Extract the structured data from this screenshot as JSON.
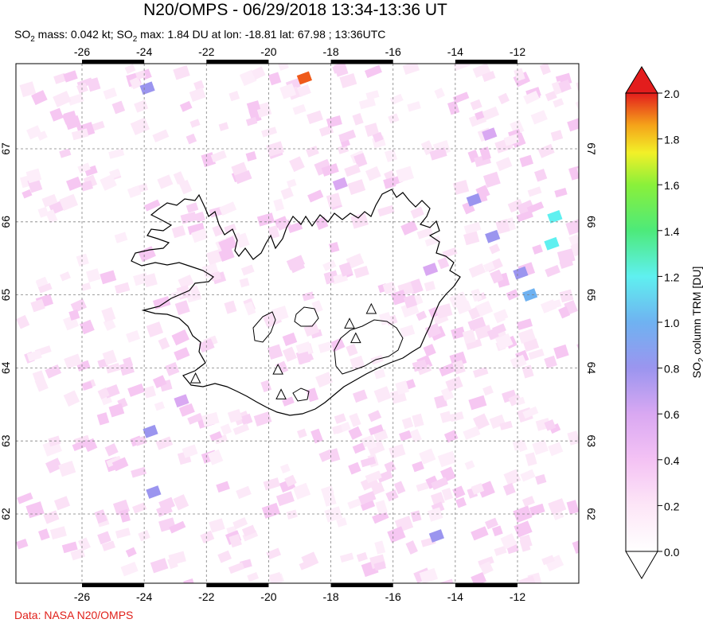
{
  "header": {
    "title": "N20/OMPS - 06/29/2018 13:34-13:36 UT",
    "subtitle_pre": "SO",
    "subtitle_sub": "2",
    "subtitle_mid": " mass: 0.042 kt; SO",
    "subtitle_sub2": "2",
    "subtitle_post": " max: 1.84 DU at lon: -18.81 lat: 67.98 ; 13:36UTC"
  },
  "credit": "Data: NASA N20/OMPS",
  "colors": {
    "scale": [
      "#ffffff",
      "#fde6f7",
      "#f4c2f4",
      "#d9a8f2",
      "#9b95ef",
      "#6fb2f1",
      "#5ff0f0",
      "#4dea7a",
      "#8af03a",
      "#f2f028",
      "#f5a31a",
      "#ef5a1a",
      "#e31d1d"
    ],
    "grid": "#808080",
    "coast": "#000000"
  },
  "chart_data": {
    "type": "heatmap",
    "title": "N20/OMPS - 06/29/2018 13:34-13:36 UT",
    "xlim": [
      -27.5,
      -10.8
    ],
    "ylim": [
      61.2,
      68.0
    ],
    "x_ticks": [
      "-26",
      "-24",
      "-22",
      "-20",
      "-18",
      "-16",
      "-14",
      "-12"
    ],
    "x_tick_values": [
      -26,
      -24,
      -22,
      -20,
      -18,
      -16,
      -14,
      -12
    ],
    "y_ticks": [
      "62",
      "63",
      "64",
      "65",
      "66",
      "67"
    ],
    "y_tick_values": [
      62,
      63,
      64,
      65,
      66,
      67
    ],
    "colorbar": {
      "label": "SO2 column TRM [DU]",
      "label_pre": "SO",
      "label_sub": "2",
      "label_post": " column TRM [DU]",
      "min": 0.0,
      "max": 2.0,
      "ticks": [
        "0.0",
        "0.2",
        "0.4",
        "0.6",
        "0.8",
        "1.0",
        "1.2",
        "1.4",
        "1.6",
        "1.8",
        "2.0"
      ],
      "tick_values": [
        0.0,
        0.2,
        0.4,
        0.6,
        0.8,
        1.0,
        1.2,
        1.4,
        1.6,
        1.8,
        2.0
      ]
    },
    "max_point": {
      "lon": -18.81,
      "lat": 67.98,
      "value": 1.84
    },
    "highlight_pixels": [
      {
        "lon": -18.85,
        "lat": 67.97,
        "value": 1.84
      },
      {
        "lon": -23.9,
        "lat": 67.83,
        "value": 0.65
      },
      {
        "lon": -10.8,
        "lat": 66.07,
        "value": 0.95
      },
      {
        "lon": -10.9,
        "lat": 65.7,
        "value": 0.98
      },
      {
        "lon": -11.6,
        "lat": 65.0,
        "value": 0.75
      },
      {
        "lon": -11.9,
        "lat": 65.3,
        "value": 0.6
      },
      {
        "lon": -12.8,
        "lat": 65.8,
        "value": 0.62
      },
      {
        "lon": -13.4,
        "lat": 66.3,
        "value": 0.6
      },
      {
        "lon": -14.8,
        "lat": 65.35,
        "value": 0.58
      },
      {
        "lon": -22.8,
        "lat": 63.55,
        "value": 0.58
      },
      {
        "lon": -23.8,
        "lat": 63.13,
        "value": 0.6
      },
      {
        "lon": -23.7,
        "lat": 62.3,
        "value": 0.6
      },
      {
        "lon": -14.6,
        "lat": 61.7,
        "value": 0.6
      },
      {
        "lon": -12.9,
        "lat": 67.2,
        "value": 0.52
      },
      {
        "lon": -17.7,
        "lat": 66.52,
        "value": 0.5
      }
    ],
    "volcanoes": [
      {
        "lon": -22.35,
        "lat": 63.85
      },
      {
        "lon": -19.7,
        "lat": 63.97
      },
      {
        "lon": -17.4,
        "lat": 64.6
      },
      {
        "lon": -17.2,
        "lat": 64.4
      },
      {
        "lon": -16.7,
        "lat": 64.8
      },
      {
        "lon": -19.6,
        "lat": 63.63
      }
    ]
  }
}
